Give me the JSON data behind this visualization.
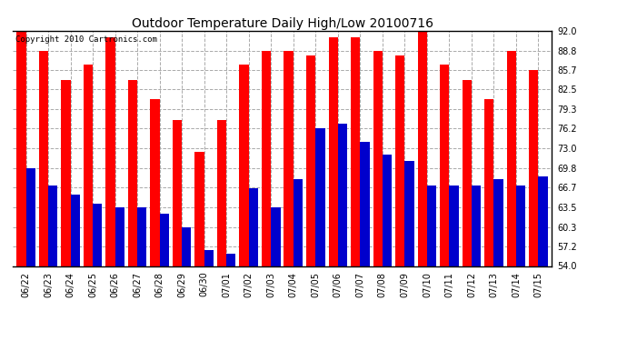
{
  "title": "Outdoor Temperature Daily High/Low 20100716",
  "copyright": "Copyright 2010 Cartronics.com",
  "dates": [
    "06/22",
    "06/23",
    "06/24",
    "06/25",
    "06/26",
    "06/27",
    "06/28",
    "06/29",
    "06/30",
    "07/01",
    "07/02",
    "07/03",
    "07/04",
    "07/05",
    "07/06",
    "07/07",
    "07/08",
    "07/09",
    "07/10",
    "07/11",
    "07/12",
    "07/13",
    "07/14",
    "07/15"
  ],
  "highs": [
    92.0,
    88.8,
    84.0,
    86.5,
    91.0,
    84.0,
    81.0,
    77.5,
    72.5,
    77.5,
    86.5,
    88.8,
    88.8,
    88.0,
    91.0,
    91.0,
    88.8,
    88.0,
    92.0,
    86.5,
    84.0,
    81.0,
    88.8,
    85.7
  ],
  "lows": [
    69.8,
    67.0,
    65.5,
    64.0,
    63.5,
    63.5,
    62.5,
    60.3,
    56.5,
    56.0,
    66.5,
    63.5,
    68.0,
    76.2,
    77.0,
    74.0,
    72.0,
    71.0,
    67.0,
    67.0,
    67.0,
    68.0,
    67.0,
    68.5
  ],
  "high_color": "#ff0000",
  "low_color": "#0000cc",
  "bg_color": "#ffffff",
  "grid_color": "#aaaaaa",
  "ymin": 54.0,
  "ymax": 92.0,
  "yticks": [
    54.0,
    57.2,
    60.3,
    63.5,
    66.7,
    69.8,
    73.0,
    76.2,
    79.3,
    82.5,
    85.7,
    88.8,
    92.0
  ],
  "bar_width": 0.42,
  "title_fontsize": 10,
  "tick_fontsize": 7,
  "copyright_fontsize": 6.5
}
